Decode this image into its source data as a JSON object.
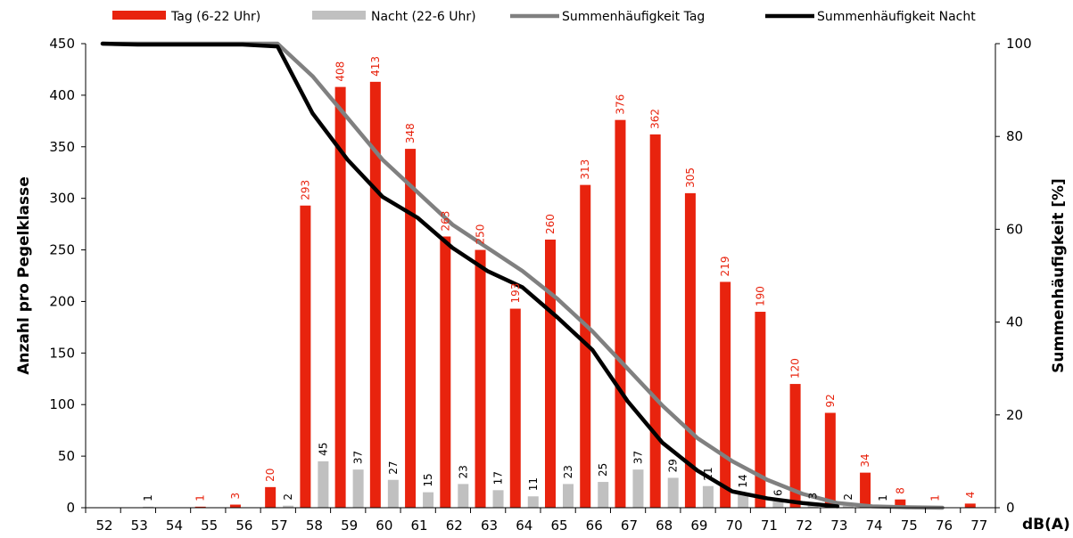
{
  "chart_data": {
    "type": "bar",
    "x_unit_label": "dB(A)",
    "ylabel_left": "Anzahl pro Pegelklasse",
    "ylabel_right": "Summenhäufigkeit [%]",
    "ylim_left": [
      0,
      450
    ],
    "yticks_left": [
      0,
      50,
      100,
      150,
      200,
      250,
      300,
      350,
      400,
      450
    ],
    "ylim_right": [
      0,
      100
    ],
    "yticks_right": [
      0,
      20,
      40,
      60,
      80,
      100
    ],
    "grid": false,
    "legend_position": "top",
    "categories": [
      "52",
      "53",
      "54",
      "55",
      "56",
      "57",
      "58",
      "59",
      "60",
      "61",
      "62",
      "63",
      "64",
      "65",
      "66",
      "67",
      "68",
      "69",
      "70",
      "71",
      "72",
      "73",
      "74",
      "75",
      "76",
      "77"
    ],
    "bar_series": [
      {
        "name": "Tag (6-22 Uhr)",
        "color": "#e8230e",
        "label_color": "#e8230e",
        "values": [
          0,
          0,
          0,
          1,
          3,
          20,
          293,
          408,
          413,
          348,
          263,
          250,
          193,
          260,
          313,
          376,
          362,
          305,
          219,
          190,
          120,
          92,
          34,
          8,
          1,
          4
        ],
        "data_labels": [
          "",
          "",
          "",
          "1",
          "3",
          "20",
          "293",
          "408",
          "413",
          "348",
          "263",
          "250",
          "193",
          "260",
          "313",
          "376",
          "362",
          "305",
          "219",
          "190",
          "120",
          "92",
          "34",
          "8",
          "1",
          "4"
        ]
      },
      {
        "name": "Nacht (22-6 Uhr)",
        "color": "#c0c0c0",
        "label_color": "#000000",
        "values": [
          0,
          1,
          0,
          0,
          0,
          2,
          45,
          37,
          27,
          15,
          23,
          17,
          11,
          23,
          25,
          37,
          29,
          21,
          14,
          6,
          3,
          2,
          1,
          0,
          0,
          0
        ],
        "data_labels": [
          "",
          "1",
          "",
          "",
          "",
          "2",
          "45",
          "37",
          "27",
          "15",
          "23",
          "17",
          "11",
          "23",
          "25",
          "37",
          "29",
          "21",
          "14",
          "6",
          "3",
          "2",
          "1",
          "",
          "",
          ""
        ]
      }
    ],
    "line_series": [
      {
        "name": "Summenhäufigkeit Tag",
        "color": "#808080",
        "x": [
          "52",
          "53",
          "54",
          "55",
          "56",
          "57",
          "58",
          "59",
          "60",
          "61",
          "62",
          "63",
          "64",
          "65",
          "66",
          "67",
          "68",
          "69",
          "70",
          "71",
          "72",
          "73",
          "74",
          "75",
          "76"
        ],
        "values": [
          100,
          100,
          100,
          100,
          100,
          100,
          93,
          84,
          75,
          68,
          61,
          56,
          51,
          45,
          38,
          30,
          22,
          15,
          10,
          6,
          3,
          1,
          0.3,
          0.1,
          0
        ]
      },
      {
        "name": "Summenhäufigkeit Nacht",
        "color": "#000000",
        "x": [
          "52",
          "53",
          "54",
          "55",
          "56",
          "57",
          "58",
          "59",
          "60",
          "61",
          "62",
          "63",
          "64",
          "65",
          "66",
          "67",
          "68",
          "69",
          "70",
          "71",
          "72",
          "73"
        ],
        "values": [
          100,
          99.8,
          99.8,
          99.8,
          99.8,
          99.4,
          85,
          75,
          67,
          62.5,
          56,
          51,
          47.5,
          41,
          34,
          23,
          14,
          8,
          3.5,
          2,
          1,
          0.3
        ]
      }
    ]
  }
}
